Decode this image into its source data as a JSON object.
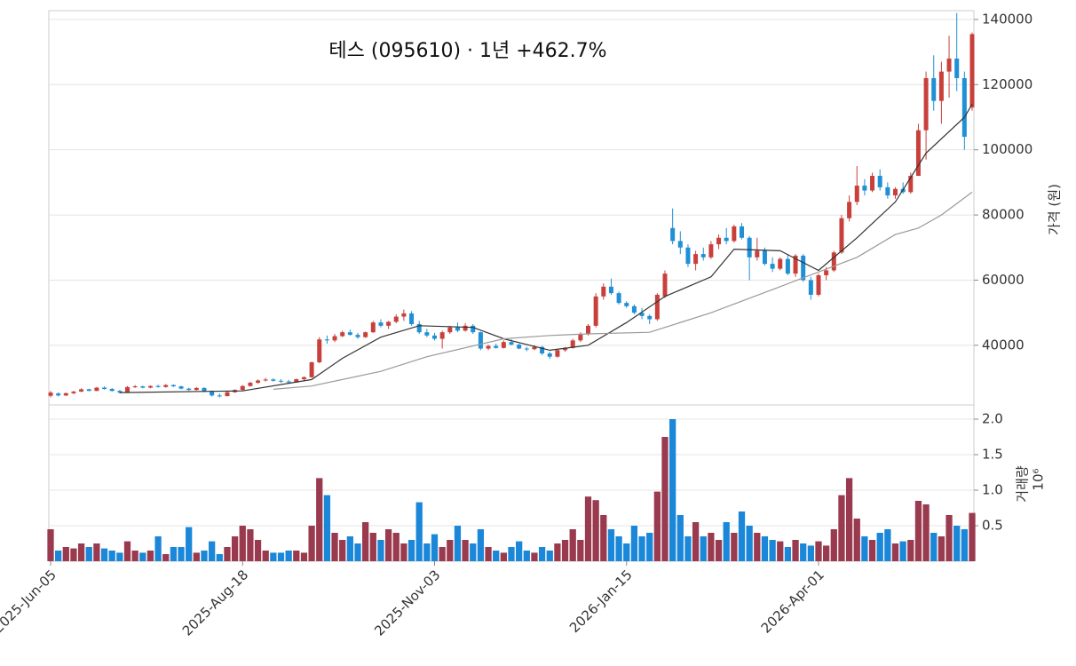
{
  "chart_data": [
    {
      "type": "candlestick",
      "title": "테스 (095610)  ·  1년 +462.7%",
      "ylabel": "가격 (원)",
      "categories": [
        "2025-Jun-05",
        null,
        null,
        null,
        null,
        null,
        null,
        null,
        null,
        null,
        null,
        null,
        null,
        null,
        null,
        null,
        null,
        null,
        null,
        null,
        null,
        null,
        null,
        null,
        null,
        "2025-Aug-18",
        null,
        null,
        null,
        null,
        null,
        null,
        null,
        null,
        null,
        null,
        null,
        null,
        null,
        null,
        null,
        null,
        null,
        null,
        null,
        null,
        null,
        null,
        null,
        null,
        "2025-Nov-03",
        null,
        null,
        null,
        null,
        null,
        null,
        null,
        null,
        null,
        null,
        null,
        null,
        null,
        null,
        null,
        null,
        null,
        null,
        null,
        null,
        null,
        null,
        null,
        null,
        "2026-Jan-15",
        null,
        null,
        null,
        null,
        null,
        null,
        null,
        null,
        null,
        null,
        null,
        null,
        null,
        null,
        null,
        null,
        null,
        null,
        null,
        null,
        null,
        null,
        null,
        null,
        "2026-Apr-01",
        null,
        null,
        null,
        null,
        null,
        null,
        null,
        null,
        null,
        null,
        null,
        null,
        null,
        null,
        null,
        null,
        null,
        null,
        null,
        null
      ],
      "ohlc": [
        [
          24500,
          26000,
          24000,
          25500
        ],
        [
          25200,
          25600,
          24300,
          24600
        ],
        [
          24600,
          25500,
          24400,
          25300
        ],
        [
          25300,
          26000,
          25000,
          25800
        ],
        [
          25800,
          26800,
          25600,
          26500
        ],
        [
          26500,
          26700,
          25900,
          26000
        ],
        [
          26000,
          27200,
          25900,
          27000
        ],
        [
          27000,
          27400,
          26400,
          26600
        ],
        [
          26600,
          26900,
          25800,
          26000
        ],
        [
          26000,
          26300,
          25200,
          25500
        ],
        [
          25500,
          27500,
          25400,
          27200
        ],
        [
          27200,
          27800,
          26900,
          27400
        ],
        [
          27400,
          27600,
          26800,
          27000
        ],
        [
          27000,
          27700,
          26800,
          27500
        ],
        [
          27500,
          27900,
          27000,
          27200
        ],
        [
          27200,
          28100,
          27000,
          27800
        ],
        [
          27800,
          28000,
          27200,
          27400
        ],
        [
          27400,
          27600,
          26500,
          26700
        ],
        [
          26700,
          27000,
          26000,
          26300
        ],
        [
          26300,
          27200,
          26100,
          26900
        ],
        [
          26900,
          27100,
          25600,
          25900
        ],
        [
          25900,
          26100,
          24300,
          24600
        ],
        [
          24600,
          25200,
          24000,
          24400
        ],
        [
          24400,
          25800,
          24300,
          25600
        ],
        [
          25600,
          26500,
          25400,
          26300
        ],
        [
          26300,
          27800,
          26100,
          27500
        ],
        [
          27500,
          28800,
          27300,
          28500
        ],
        [
          28500,
          29500,
          28200,
          29200
        ],
        [
          29200,
          30000,
          28900,
          29500
        ],
        [
          29500,
          29900,
          28900,
          29100
        ],
        [
          29100,
          29600,
          28500,
          28900
        ],
        [
          28900,
          29400,
          28300,
          28600
        ],
        [
          28600,
          29800,
          28500,
          29600
        ],
        [
          29600,
          30500,
          29200,
          30200
        ],
        [
          30200,
          35000,
          30000,
          34800
        ],
        [
          34800,
          42500,
          34500,
          41800
        ],
        [
          41800,
          43000,
          40500,
          41500
        ],
        [
          41500,
          43500,
          41000,
          42800
        ],
        [
          42800,
          44500,
          42500,
          44000
        ],
        [
          44000,
          44800,
          43000,
          43200
        ],
        [
          43200,
          43800,
          42000,
          42500
        ],
        [
          42500,
          44200,
          42300,
          44000
        ],
        [
          44000,
          47500,
          43800,
          47000
        ],
        [
          47000,
          48000,
          45500,
          46000
        ],
        [
          46000,
          47500,
          45000,
          47200
        ],
        [
          47200,
          49500,
          46800,
          48800
        ],
        [
          48800,
          51000,
          47500,
          49800
        ],
        [
          49800,
          50500,
          46000,
          46500
        ],
        [
          46500,
          47500,
          43500,
          44000
        ],
        [
          44000,
          45000,
          42500,
          43000
        ],
        [
          43000,
          43800,
          41500,
          42000
        ],
        [
          42000,
          44500,
          39000,
          44000
        ],
        [
          44000,
          46000,
          43500,
          45500
        ],
        [
          45500,
          47000,
          44000,
          44500
        ],
        [
          44500,
          46800,
          44200,
          46000
        ],
        [
          46000,
          46500,
          43500,
          44000
        ],
        [
          44000,
          44200,
          38500,
          39000
        ],
        [
          39000,
          40200,
          38500,
          39800
        ],
        [
          39800,
          40500,
          39000,
          39200
        ],
        [
          39200,
          41500,
          39000,
          41000
        ],
        [
          41000,
          41800,
          40000,
          40200
        ],
        [
          40200,
          40500,
          38800,
          39000
        ],
        [
          39000,
          39500,
          38200,
          38800
        ],
        [
          38800,
          40000,
          38500,
          39500
        ],
        [
          39500,
          39800,
          37000,
          37500
        ],
        [
          37500,
          38000,
          35800,
          36500
        ],
        [
          36500,
          38800,
          36200,
          38500
        ],
        [
          38500,
          39500,
          38000,
          39200
        ],
        [
          39200,
          42000,
          39000,
          41500
        ],
        [
          41500,
          44000,
          41000,
          43500
        ],
        [
          43500,
          46500,
          43000,
          46000
        ],
        [
          46000,
          56000,
          45500,
          55000
        ],
        [
          55000,
          59000,
          54000,
          58000
        ],
        [
          58000,
          60500,
          55500,
          56000
        ],
        [
          56000,
          56500,
          52500,
          53000
        ],
        [
          53000,
          53500,
          51500,
          52000
        ],
        [
          52000,
          52500,
          49500,
          50000
        ],
        [
          50000,
          51500,
          48000,
          49000
        ],
        [
          49000,
          49500,
          46500,
          48000
        ],
        [
          48000,
          56000,
          47500,
          55500
        ],
        [
          55000,
          63000,
          54500,
          62000
        ],
        [
          76000,
          82000,
          71000,
          72000
        ],
        [
          72000,
          75000,
          68000,
          70000
        ],
        [
          70000,
          71000,
          64000,
          65000
        ],
        [
          65000,
          69000,
          63000,
          68000
        ],
        [
          68000,
          70000,
          66000,
          67000
        ],
        [
          67000,
          72000,
          66500,
          71000
        ],
        [
          71000,
          74000,
          69500,
          73000
        ],
        [
          73000,
          76000,
          71000,
          72000
        ],
        [
          72000,
          77000,
          71500,
          76500
        ],
        [
          76500,
          77500,
          72500,
          73000
        ],
        [
          73000,
          73500,
          60000,
          67000
        ],
        [
          67000,
          73000,
          66000,
          69000
        ],
        [
          69000,
          70000,
          64500,
          65000
        ],
        [
          65000,
          67000,
          62500,
          63500
        ],
        [
          63500,
          67000,
          63000,
          66500
        ],
        [
          66500,
          68000,
          61500,
          62000
        ],
        [
          62000,
          68000,
          61000,
          67500
        ],
        [
          67500,
          68000,
          59500,
          60000
        ],
        [
          60000,
          61000,
          54000,
          55500
        ],
        [
          55500,
          62000,
          55000,
          61500
        ],
        [
          61500,
          64000,
          60000,
          63000
        ],
        [
          63000,
          69000,
          62500,
          68500
        ],
        [
          68500,
          80000,
          68000,
          79000
        ],
        [
          79000,
          86000,
          78000,
          84000
        ],
        [
          84000,
          95000,
          83000,
          89000
        ],
        [
          89000,
          91000,
          86000,
          87500
        ],
        [
          87500,
          93000,
          87000,
          92000
        ],
        [
          92000,
          94000,
          87500,
          88500
        ],
        [
          88500,
          90000,
          85000,
          86000
        ],
        [
          86000,
          88500,
          85000,
          88000
        ],
        [
          88000,
          90000,
          86500,
          87000
        ],
        [
          87000,
          93000,
          86500,
          92000
        ],
        [
          92000,
          108000,
          92000,
          106000
        ],
        [
          106000,
          124000,
          97000,
          122000
        ],
        [
          122000,
          129000,
          112000,
          115000
        ],
        [
          115000,
          127000,
          108000,
          124000
        ],
        [
          124000,
          135000,
          116000,
          128000
        ],
        [
          128000,
          142000,
          118000,
          122000
        ],
        [
          122000,
          124000,
          100000,
          104000
        ],
        [
          113000,
          136000,
          112000,
          135500
        ]
      ],
      "up_color": "#c8403c",
      "down_color": "#1f8fd6",
      "series": [
        {
          "color": "#333333",
          "x": [
            9,
            25,
            34,
            38,
            43,
            48,
            55,
            59,
            65,
            70,
            75,
            80,
            86,
            89,
            95,
            100,
            105,
            110,
            114,
            119,
            120
          ],
          "values": [
            25500,
            26000,
            29500,
            36000,
            42500,
            46000,
            45500,
            42000,
            38500,
            40000,
            47000,
            55000,
            61000,
            69500,
            69000,
            63000,
            73000,
            84000,
            99000,
            110000,
            114000
          ]
        },
        {
          "color": "#999999",
          "x": [
            29,
            34,
            43,
            49,
            59,
            65,
            70,
            78,
            86,
            95,
            100,
            105,
            110,
            113,
            116,
            120
          ],
          "values": [
            26500,
            27500,
            32000,
            36500,
            42000,
            43000,
            43500,
            44000,
            50000,
            58000,
            62500,
            67000,
            74000,
            76000,
            80000,
            87000
          ]
        }
      ],
      "ylim": [
        21700,
        142700
      ],
      "yticks": [
        40000,
        60000,
        80000,
        100000,
        120000,
        140000
      ],
      "grid": true
    },
    {
      "type": "bar",
      "ylabel": "거래량",
      "offset_label": "10⁶",
      "values": [
        0.45,
        0.15,
        0.2,
        0.18,
        0.25,
        0.2,
        0.25,
        0.18,
        0.15,
        0.12,
        0.28,
        0.15,
        0.12,
        0.15,
        0.35,
        0.1,
        0.2,
        0.2,
        0.48,
        0.12,
        0.15,
        0.28,
        0.1,
        0.2,
        0.35,
        0.5,
        0.45,
        0.3,
        0.15,
        0.12,
        0.12,
        0.15,
        0.15,
        0.12,
        0.5,
        1.17,
        0.93,
        0.4,
        0.3,
        0.35,
        0.25,
        0.55,
        0.4,
        0.3,
        0.45,
        0.4,
        0.25,
        0.3,
        0.83,
        0.25,
        0.38,
        0.2,
        0.3,
        0.5,
        0.3,
        0.25,
        0.45,
        0.2,
        0.15,
        0.12,
        0.2,
        0.28,
        0.15,
        0.12,
        0.2,
        0.15,
        0.25,
        0.3,
        0.45,
        0.3,
        0.91,
        0.86,
        0.65,
        0.45,
        0.35,
        0.25,
        0.5,
        0.35,
        0.4,
        0.98,
        1.75,
        2.0,
        0.65,
        0.35,
        0.55,
        0.35,
        0.4,
        0.3,
        0.55,
        0.4,
        0.7,
        0.5,
        0.4,
        0.35,
        0.3,
        0.28,
        0.2,
        0.3,
        0.25,
        0.22,
        0.28,
        0.22,
        0.45,
        0.93,
        1.17,
        0.6,
        0.35,
        0.3,
        0.4,
        0.45,
        0.25,
        0.28,
        0.3,
        0.85,
        0.8,
        0.4,
        0.35,
        0.65,
        0.5,
        0.45,
        0.68
      ],
      "up_color": "#9a3a4f",
      "down_color": "#1a87d9",
      "ylim": [
        0,
        2.2
      ],
      "yticks": [
        0.5,
        {
          "value": 1,
          "label": "1.0"
        },
        1.5,
        {
          "value": 2,
          "label": "2.0"
        }
      ],
      "grid": true
    }
  ]
}
